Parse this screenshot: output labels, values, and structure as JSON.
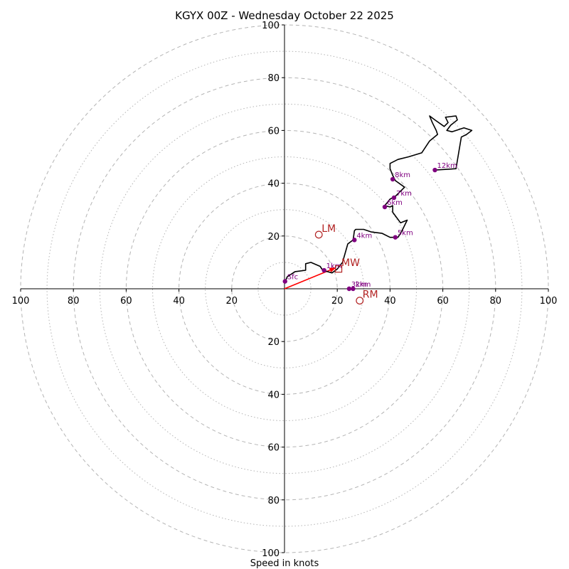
{
  "chart_data": {
    "type": "hodograph",
    "title": "KGYX 00Z - Wednesday October 22 2025",
    "xlabel": "Speed in knots",
    "range": [
      -100,
      100
    ],
    "ring_major_step": 20,
    "ring_minor_step": 10,
    "ticks": {
      "horizontal": [
        "100",
        "80",
        "60",
        "40",
        "20",
        "20",
        "40",
        "60",
        "80",
        "100"
      ],
      "horizontal_values": [
        -100,
        -80,
        -60,
        -40,
        -20,
        20,
        40,
        60,
        80,
        100
      ],
      "vertical_up": [
        "100",
        "80",
        "60",
        "40",
        "20"
      ],
      "vertical_up_values": [
        100,
        80,
        60,
        40,
        20
      ],
      "vertical_down": [
        "20",
        "40",
        "60",
        "80",
        "100"
      ],
      "vertical_down_values": [
        -20,
        -40,
        -60,
        -80,
        -100
      ]
    },
    "hodograph_trace": [
      [
        0,
        2
      ],
      [
        1,
        4.5
      ],
      [
        4,
        6.5
      ],
      [
        8,
        7
      ],
      [
        8,
        9.5
      ],
      [
        10,
        10
      ],
      [
        13.5,
        8.5
      ],
      [
        14.5,
        7
      ],
      [
        18,
        6
      ],
      [
        20,
        7.5
      ],
      [
        22,
        10
      ],
      [
        23,
        13.5
      ],
      [
        24,
        17
      ],
      [
        26,
        18.5
      ],
      [
        26.5,
        22
      ],
      [
        27,
        22.5
      ],
      [
        30,
        22.5
      ],
      [
        33,
        21.5
      ],
      [
        37,
        21
      ],
      [
        40,
        19.5
      ],
      [
        43,
        19.5
      ],
      [
        44,
        21
      ],
      [
        45,
        23
      ],
      [
        46.5,
        26
      ],
      [
        44,
        25
      ],
      [
        41,
        29
      ],
      [
        41,
        31.5
      ],
      [
        40,
        31
      ],
      [
        38,
        31.5
      ],
      [
        40,
        34
      ],
      [
        42,
        35
      ],
      [
        43,
        36
      ],
      [
        45.5,
        38.5
      ],
      [
        42,
        41
      ],
      [
        41,
        43
      ],
      [
        40,
        45.5
      ],
      [
        40,
        47.5
      ],
      [
        43,
        49
      ],
      [
        47,
        50
      ],
      [
        52,
        51.5
      ],
      [
        55,
        56
      ],
      [
        58,
        58.5
      ],
      [
        57.5,
        60
      ],
      [
        56,
        63
      ],
      [
        55,
        65.5
      ],
      [
        57,
        64
      ],
      [
        60.5,
        61.5
      ],
      [
        62,
        63
      ],
      [
        61,
        65
      ],
      [
        65,
        65.5
      ],
      [
        65.5,
        64
      ],
      [
        63,
        62
      ],
      [
        61.5,
        60
      ],
      [
        63.5,
        59.5
      ],
      [
        68,
        61
      ],
      [
        71,
        60
      ],
      [
        69,
        58.5
      ],
      [
        67,
        57.5
      ],
      [
        65,
        45.5
      ],
      [
        57,
        45
      ]
    ],
    "height_markers": [
      {
        "label": "Sfc",
        "u": 0.2,
        "v": 2.8
      },
      {
        "label": "1km",
        "u": 15,
        "v": 7
      },
      {
        "label": "2km",
        "u": 26,
        "v": 0
      },
      {
        "label": "3km",
        "u": 24.5,
        "v": 0
      },
      {
        "label": "4km",
        "u": 26.5,
        "v": 18.5
      },
      {
        "label": "5km",
        "u": 42,
        "v": 19.5
      },
      {
        "label": "6km",
        "u": 38,
        "v": 31
      },
      {
        "label": "7km",
        "u": 41.5,
        "v": 34.5
      },
      {
        "label": "8km",
        "u": 41,
        "v": 41.5
      },
      {
        "label": "12km",
        "u": 57,
        "v": 45
      }
    ],
    "storm_motion": [
      {
        "label": "LM",
        "u": 13,
        "v": 20.5
      },
      {
        "label": "MW",
        "u": 20.5,
        "v": 7.5
      },
      {
        "label": "RM",
        "u": 28.5,
        "v": -4.5
      }
    ],
    "shear_vector": {
      "from": [
        0,
        0
      ],
      "to": [
        19.5,
        8
      ]
    },
    "colors": {
      "trace": "#000000",
      "marker": "#800080",
      "storm": "#b22222",
      "shear": "#ff0000",
      "grid": "#b4b4b4",
      "axis": "#000000"
    }
  }
}
